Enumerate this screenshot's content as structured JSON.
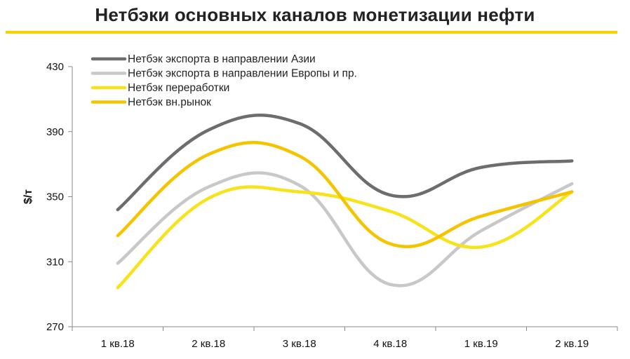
{
  "chart_data": {
    "type": "line",
    "title": "Нетбэки основных каналов монетизации нефти",
    "ylabel": "$/т",
    "xlabel": "",
    "categories": [
      "1 кв.18",
      "2 кв.18",
      "3 кв.18",
      "4 кв.18",
      "1 кв.19",
      "2 кв.19"
    ],
    "ylim": [
      270,
      430
    ],
    "yticks": [
      270,
      310,
      350,
      390,
      430
    ],
    "grid": false,
    "legend_position": "top-left",
    "series": [
      {
        "name": "Нетбэк экспорта в направлении Азии",
        "color": "#6d6d6d",
        "values": [
          342,
          391,
          395,
          351,
          368,
          372
        ]
      },
      {
        "name": "Нетбэк экспорта в направлении Европы и пр.",
        "color": "#c8c8c8",
        "values": [
          309,
          356,
          357,
          296,
          329,
          358
        ]
      },
      {
        "name": "Нетбэк переработки",
        "color": "#f8e21a",
        "values": [
          294,
          349,
          353,
          341,
          319,
          353
        ]
      },
      {
        "name": "Нетбэк вн.рынок",
        "color": "#f5c400",
        "values": [
          326,
          376,
          375,
          321,
          338,
          353
        ]
      }
    ]
  },
  "accent_color": "#f5d300"
}
